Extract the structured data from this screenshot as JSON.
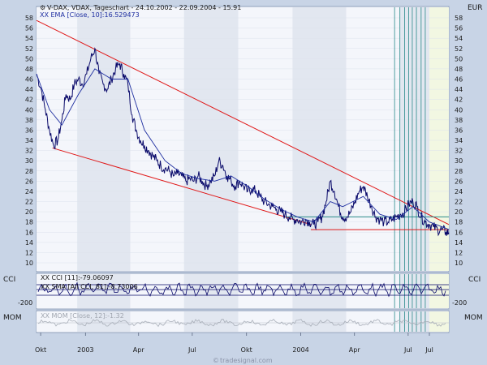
{
  "chart_data": {
    "type": "line",
    "title": "V-DAX, VDAX, Tageschart - 24.10.2002 - 22.09.2004 - 15.91",
    "subtitle": "XX EMA [Close, 10]:16.529473",
    "currency_label": "EUR",
    "y_axis": {
      "min": 10,
      "max": 58,
      "ticks": [
        10,
        12,
        14,
        16,
        18,
        20,
        22,
        24,
        26,
        28,
        30,
        32,
        34,
        36,
        38,
        40,
        42,
        44,
        46,
        48,
        50,
        52,
        54,
        56,
        58
      ]
    },
    "x_axis": {
      "ticks": [
        {
          "label": "Okt",
          "date": "2002-10-31"
        },
        {
          "label": "2003",
          "date": "2003-01-15"
        },
        {
          "label": "Apr",
          "date": "2003-04-15"
        },
        {
          "label": "Jul",
          "date": "2003-07-15"
        },
        {
          "label": "Okt",
          "date": "2003-10-15"
        },
        {
          "label": "2004",
          "date": "2004-01-15"
        },
        {
          "label": "Apr",
          "date": "2004-04-15"
        },
        {
          "label": "Jul",
          "date": "2004-07-15"
        },
        {
          "label": "Jul",
          "date": "2004-08-20"
        }
      ],
      "range": [
        "2002-10-24",
        "2004-09-22"
      ]
    },
    "series": [
      {
        "values": [
          [
            "2002-10-24",
            47
          ],
          [
            "2002-11-01",
            44
          ],
          [
            "2002-11-08",
            40
          ],
          [
            "2002-11-15",
            36
          ],
          [
            "2002-11-22",
            33
          ],
          [
            "2002-11-29",
            34
          ],
          [
            "2002-12-06",
            38
          ],
          [
            "2002-12-13",
            43
          ],
          [
            "2002-12-20",
            42
          ],
          [
            "2002-12-27",
            45
          ],
          [
            "2003-01-03",
            46
          ],
          [
            "2003-01-10",
            45
          ],
          [
            "2003-01-17",
            47
          ],
          [
            "2003-01-24",
            50
          ],
          [
            "2003-01-31",
            52
          ],
          [
            "2003-02-07",
            47
          ],
          [
            "2003-02-14",
            45
          ],
          [
            "2003-02-21",
            44
          ],
          [
            "2003-02-28",
            46
          ],
          [
            "2003-03-07",
            48
          ],
          [
            "2003-03-14",
            49
          ],
          [
            "2003-03-21",
            47
          ],
          [
            "2003-03-28",
            45
          ],
          [
            "2003-04-04",
            39
          ],
          [
            "2003-04-11",
            36
          ],
          [
            "2003-04-18",
            34
          ],
          [
            "2003-04-25",
            33
          ],
          [
            "2003-05-02",
            32
          ],
          [
            "2003-05-09",
            31
          ],
          [
            "2003-05-16",
            30
          ],
          [
            "2003-05-23",
            29
          ],
          [
            "2003-05-30",
            28.5
          ],
          [
            "2003-06-06",
            28
          ],
          [
            "2003-06-13",
            27
          ],
          [
            "2003-06-20",
            27.5
          ],
          [
            "2003-06-27",
            27
          ],
          [
            "2003-07-04",
            26
          ],
          [
            "2003-07-11",
            26.5
          ],
          [
            "2003-07-18",
            26
          ],
          [
            "2003-07-25",
            27
          ],
          [
            "2003-08-01",
            26
          ],
          [
            "2003-08-08",
            25
          ],
          [
            "2003-08-15",
            26
          ],
          [
            "2003-08-22",
            27
          ],
          [
            "2003-08-29",
            30
          ],
          [
            "2003-09-05",
            29
          ],
          [
            "2003-09-12",
            27
          ],
          [
            "2003-09-19",
            26
          ],
          [
            "2003-09-26",
            25
          ],
          [
            "2003-10-03",
            26
          ],
          [
            "2003-10-10",
            25
          ],
          [
            "2003-10-17",
            24
          ],
          [
            "2003-10-24",
            24.5
          ],
          [
            "2003-10-31",
            24
          ],
          [
            "2003-11-07",
            23
          ],
          [
            "2003-11-14",
            22
          ],
          [
            "2003-11-21",
            21.5
          ],
          [
            "2003-11-28",
            21
          ],
          [
            "2003-12-05",
            20.5
          ],
          [
            "2003-12-12",
            20
          ],
          [
            "2003-12-19",
            19.5
          ],
          [
            "2003-12-26",
            19
          ],
          [
            "2004-01-02",
            18.5
          ],
          [
            "2004-01-09",
            18.5
          ],
          [
            "2004-01-16",
            18
          ],
          [
            "2004-01-23",
            18.5
          ],
          [
            "2004-01-30",
            18
          ],
          [
            "2004-02-06",
            17.5
          ],
          [
            "2004-02-13",
            18
          ],
          [
            "2004-02-20",
            19
          ],
          [
            "2004-02-27",
            22
          ],
          [
            "2004-03-05",
            26
          ],
          [
            "2004-03-12",
            24
          ],
          [
            "2004-03-19",
            21
          ],
          [
            "2004-03-26",
            19
          ],
          [
            "2004-04-02",
            19
          ],
          [
            "2004-04-09",
            20
          ],
          [
            "2004-04-16",
            22
          ],
          [
            "2004-04-23",
            24
          ],
          [
            "2004-04-30",
            25
          ],
          [
            "2004-05-07",
            23
          ],
          [
            "2004-05-14",
            21
          ],
          [
            "2004-05-21",
            19
          ],
          [
            "2004-05-28",
            18.5
          ],
          [
            "2004-06-04",
            18
          ],
          [
            "2004-06-11",
            18
          ],
          [
            "2004-06-18",
            18.5
          ],
          [
            "2004-06-25",
            19
          ],
          [
            "2004-07-02",
            19.5
          ],
          [
            "2004-07-09",
            20
          ],
          [
            "2004-07-16",
            21.5
          ],
          [
            "2004-07-23",
            22
          ],
          [
            "2004-07-30",
            21
          ],
          [
            "2004-08-06",
            19
          ],
          [
            "2004-08-13",
            18
          ],
          [
            "2004-08-20",
            17.5
          ],
          [
            "2004-08-27",
            17
          ],
          [
            "2004-09-03",
            16.5
          ],
          [
            "2004-09-10",
            16.5
          ],
          [
            "2004-09-17",
            16
          ],
          [
            "2004-09-22",
            15.91
          ]
        ],
        "color": "#0a0a6a"
      },
      {
        "name": "XX EMA [Close, 10]",
        "values": [
          [
            "2002-10-24",
            47
          ],
          [
            "2002-11-15",
            40
          ],
          [
            "2002-12-06",
            37
          ],
          [
            "2003-01-03",
            43
          ],
          [
            "2003-01-31",
            48
          ],
          [
            "2003-02-28",
            46
          ],
          [
            "2003-03-28",
            46
          ],
          [
            "2003-04-25",
            36
          ],
          [
            "2003-05-30",
            30
          ],
          [
            "2003-06-27",
            27.5
          ],
          [
            "2003-07-25",
            26.5
          ],
          [
            "2003-08-22",
            26
          ],
          [
            "2003-09-19",
            27
          ],
          [
            "2003-10-17",
            25
          ],
          [
            "2003-11-14",
            22.5
          ],
          [
            "2003-12-12",
            20.5
          ],
          [
            "2004-01-09",
            19
          ],
          [
            "2004-02-06",
            18
          ],
          [
            "2004-03-05",
            22
          ],
          [
            "2004-03-26",
            21
          ],
          [
            "2004-04-30",
            23
          ],
          [
            "2004-05-28",
            19.5
          ],
          [
            "2004-06-25",
            18.5
          ],
          [
            "2004-07-23",
            21
          ],
          [
            "2004-08-20",
            18
          ],
          [
            "2004-09-22",
            16.53
          ]
        ],
        "color": "#1e2ea0"
      }
    ],
    "trendlines": [
      {
        "color": "#e01818",
        "from": [
          "2002-10-24",
          57.5
        ],
        "to": [
          "2004-09-22",
          17.5
        ]
      },
      {
        "color": "#e01818",
        "from": [
          "2002-11-20",
          32.5
        ],
        "to": [
          "2004-02-01",
          17.5
        ]
      },
      {
        "color": "#e01818",
        "from": [
          "2004-02-01",
          16.5
        ],
        "to": [
          "2004-09-22",
          16.5
        ]
      },
      {
        "color": "#2a8a8a",
        "from": [
          "2003-12-20",
          19
        ],
        "to": [
          "2004-09-22",
          19
        ]
      }
    ],
    "vertical_markers": [
      "2004-06-22",
      "2004-07-01",
      "2004-07-09",
      "2004-07-16",
      "2004-07-22",
      "2004-07-29",
      "2004-08-06",
      "2004-08-13"
    ],
    "cci": {
      "label_left": "CCI",
      "label_right": "CCI",
      "legend": "XX CCI [11]:-79.06097",
      "legend2": "XX SMA [All CCI, 81]:-8.73006",
      "tick_label": "-200"
    },
    "mom": {
      "label_left": "MOM",
      "label_right": "MOM",
      "legend": "XX MOM [Close, 12]:-1.32"
    },
    "footer": "tradesignal.com",
    "colors": {
      "background": "#c8d4e6",
      "plot": "#f4f6fb",
      "band_alt": "#e2e7f0",
      "accent_band": "#f2f7e2"
    }
  }
}
